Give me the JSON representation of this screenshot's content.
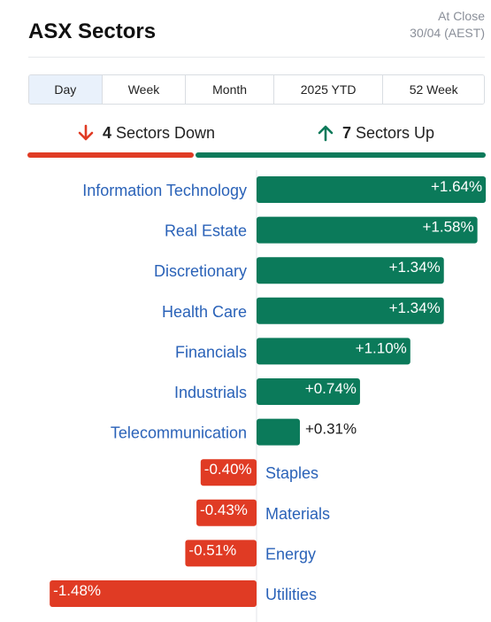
{
  "header": {
    "title": "ASX Sectors",
    "close_label": "At Close",
    "close_time": "30/04 (AEST)"
  },
  "tabs": [
    {
      "label": "Day",
      "active": true
    },
    {
      "label": "Week",
      "active": false
    },
    {
      "label": "Month",
      "active": false
    },
    {
      "label": "2025 YTD",
      "active": false
    },
    {
      "label": "52 Week",
      "active": false
    }
  ],
  "summary": {
    "down_count": "4",
    "down_label": "Sectors Down",
    "up_count": "7",
    "up_label": "Sectors Up"
  },
  "colors": {
    "up": "#0b7a5a",
    "down": "#e03b24",
    "label": "#2a62b8",
    "value": "#1a1a1a"
  },
  "chart_data": {
    "type": "bar",
    "orientation": "horizontal",
    "categories": [
      "Information Technology",
      "Real Estate",
      "Discretionary",
      "Health Care",
      "Financials",
      "Industrials",
      "Telecommunication",
      "Staples",
      "Materials",
      "Energy",
      "Utilities"
    ],
    "values": [
      1.64,
      1.58,
      1.34,
      1.34,
      1.1,
      0.74,
      0.31,
      -0.4,
      -0.43,
      -0.51,
      -1.48
    ],
    "value_labels": [
      "+1.64%",
      "+1.58%",
      "+1.34%",
      "+1.34%",
      "+1.10%",
      "+0.74%",
      "+0.31%",
      "-0.40%",
      "-0.43%",
      "-0.51%",
      "-1.48%"
    ],
    "title": "",
    "xlabel": "",
    "ylabel": "",
    "xlim": [
      -1.48,
      1.64
    ],
    "grid": false
  }
}
